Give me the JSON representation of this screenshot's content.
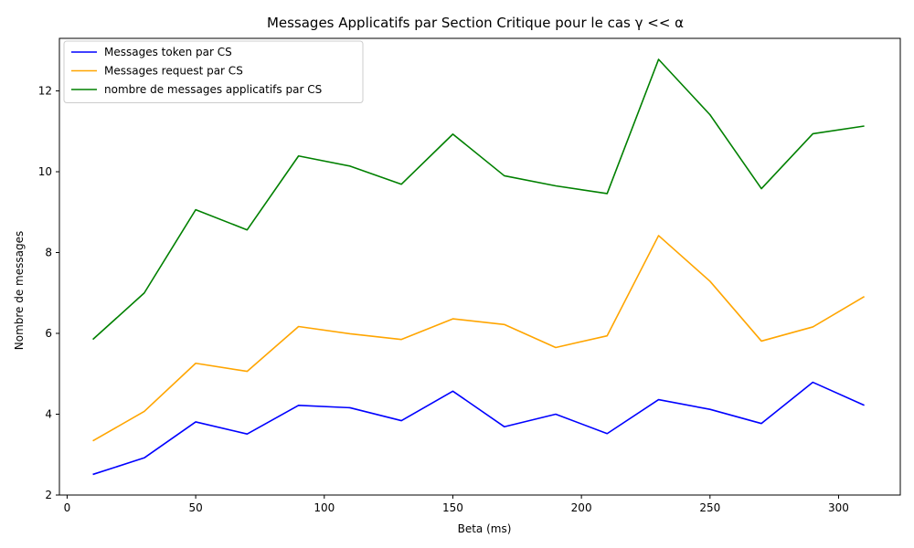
{
  "chart_data": {
    "type": "line",
    "title": "Messages Applicatifs par Section Critique pour le cas γ << α",
    "xlabel": "Beta (ms)",
    "ylabel": "Nombre de messages",
    "x": [
      10,
      30,
      50,
      70,
      90,
      110,
      130,
      150,
      170,
      190,
      210,
      230,
      250,
      270,
      290,
      310
    ],
    "xlim": [
      -3,
      324
    ],
    "ylim": [
      2.0,
      13.3
    ],
    "xticks": [
      0,
      50,
      100,
      150,
      200,
      250,
      300
    ],
    "yticks": [
      2,
      4,
      6,
      8,
      10,
      12
    ],
    "legend_position": "top-left",
    "grid": false,
    "series": [
      {
        "name": "Messages token par CS",
        "color": "#0000ff",
        "values": [
          2.51,
          2.92,
          3.81,
          3.51,
          4.22,
          4.16,
          3.84,
          4.57,
          3.69,
          4.0,
          3.52,
          4.36,
          4.12,
          3.77,
          4.79,
          4.22
        ]
      },
      {
        "name": "Messages request par CS",
        "color": "#ffa500",
        "values": [
          3.34,
          4.07,
          5.26,
          5.06,
          6.17,
          5.99,
          5.85,
          6.36,
          6.22,
          5.65,
          5.94,
          8.42,
          7.29,
          5.81,
          6.16,
          6.91
        ]
      },
      {
        "name": "nombre de messages applicatifs par CS",
        "color": "#008000",
        "values": [
          5.85,
          7.0,
          9.06,
          8.56,
          10.39,
          10.14,
          9.69,
          10.93,
          9.9,
          9.65,
          9.46,
          12.78,
          11.41,
          9.58,
          10.94,
          11.13
        ]
      }
    ]
  }
}
